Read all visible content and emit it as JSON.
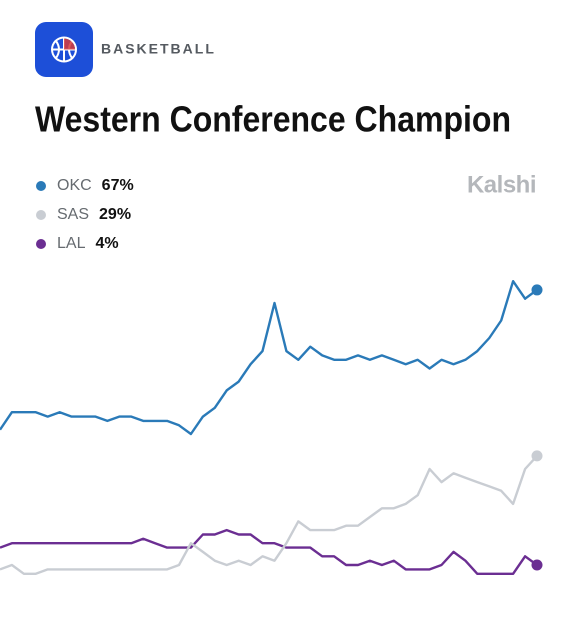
{
  "header": {
    "category": "BASKETBALL",
    "brand": "Kalshi"
  },
  "chart_data": {
    "type": "line",
    "title": "Western Conference Champion",
    "ylim": [
      0,
      75
    ],
    "series": [
      {
        "name": "OKC",
        "color": "#2a7ab8",
        "latest": {
          "value": 67,
          "label": "67%"
        },
        "values": [
          35,
          39,
          39,
          39,
          38,
          39,
          38,
          38,
          38,
          37,
          38,
          38,
          37,
          37,
          37,
          36,
          34,
          38,
          40,
          44,
          46,
          50,
          53,
          64,
          53,
          51,
          54,
          52,
          51,
          51,
          52,
          51,
          52,
          51,
          50,
          51,
          49,
          51,
          50,
          51,
          53,
          56,
          60,
          69,
          65,
          67
        ]
      },
      {
        "name": "SAS",
        "color": "#c9cdd3",
        "latest": {
          "value": 29,
          "label": "29%"
        },
        "values": [
          3,
          4,
          2,
          2,
          3,
          3,
          3,
          3,
          3,
          3,
          3,
          3,
          3,
          3,
          3,
          4,
          9,
          7,
          5,
          4,
          5,
          4,
          6,
          5,
          9,
          14,
          12,
          12,
          12,
          13,
          13,
          15,
          17,
          17,
          18,
          20,
          26,
          23,
          25,
          24,
          23,
          22,
          21,
          18,
          26,
          29
        ]
      },
      {
        "name": "LAL",
        "color": "#6b2e92",
        "latest": {
          "value": 4,
          "label": "4%"
        },
        "values": [
          8,
          9,
          9,
          9,
          9,
          9,
          9,
          9,
          9,
          9,
          9,
          9,
          10,
          9,
          8,
          8,
          8,
          11,
          11,
          12,
          11,
          11,
          9,
          9,
          8,
          8,
          8,
          6,
          6,
          4,
          4,
          5,
          4,
          5,
          3,
          3,
          3,
          4,
          7,
          5,
          2,
          2,
          2,
          2,
          6,
          4
        ]
      }
    ]
  }
}
